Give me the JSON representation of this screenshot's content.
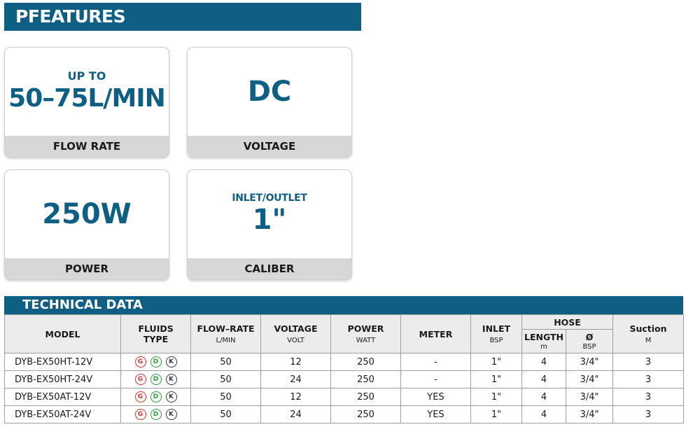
{
  "features": {
    "title": "PFEATURES",
    "cards": [
      {
        "top": "UP TO",
        "main": "50–75L/MIN",
        "label": "FLOW RATE"
      },
      {
        "main": "DC",
        "label": "VOLTAGE"
      },
      {
        "main": "250W",
        "label": "POWER"
      },
      {
        "top": "INLET/OUTLET",
        "main": "1\"",
        "label": "CALIBER"
      }
    ]
  },
  "technical": {
    "title": "TECHNICAL DATA",
    "headers": {
      "model": "MODEL",
      "fluids": "FLUIDS TYPE",
      "flow": "FLOW–RATE",
      "flow_unit": "L/MIN",
      "voltage": "VOLTAGE",
      "voltage_unit": "VOLT",
      "power": "POWER",
      "power_unit": "WATT",
      "meter": "METER",
      "inlet": "INLET",
      "inlet_unit": "BSP",
      "hose": "HOSE",
      "length": "LENGTH",
      "length_unit": "m",
      "diameter": "Ø",
      "diameter_unit": "BSP",
      "suction": "Suction",
      "suction_unit": "M"
    },
    "fluid_badges": [
      {
        "letter": "G",
        "color": "#d9302a"
      },
      {
        "letter": "D",
        "color": "#2f9a3c"
      },
      {
        "letter": "K",
        "color": "#3a3a3a"
      }
    ],
    "rows": [
      {
        "model": "DYB-EX50HT-12V",
        "flow": "50",
        "voltage": "12",
        "power": "250",
        "meter": "-",
        "inlet": "1\"",
        "length": "4",
        "diameter": "3/4\"",
        "suction": "3"
      },
      {
        "model": "DYB-EX50HT-24V",
        "flow": "50",
        "voltage": "24",
        "power": "250",
        "meter": "-",
        "inlet": "1\"",
        "length": "4",
        "diameter": "3/4\"",
        "suction": "3"
      },
      {
        "model": "DYB-EX50AT-12V",
        "flow": "50",
        "voltage": "12",
        "power": "250",
        "meter": "YES",
        "inlet": "1\"",
        "length": "4",
        "diameter": "3/4\"",
        "suction": "3"
      },
      {
        "model": "DYB-EX50AT-24V",
        "flow": "50",
        "voltage": "24",
        "power": "250",
        "meter": "YES",
        "inlet": "1\"",
        "length": "4",
        "diameter": "3/4\"",
        "suction": "3"
      }
    ]
  },
  "colors": {
    "brand": "#0e5f83",
    "card_footer": "#d7d7d7"
  }
}
